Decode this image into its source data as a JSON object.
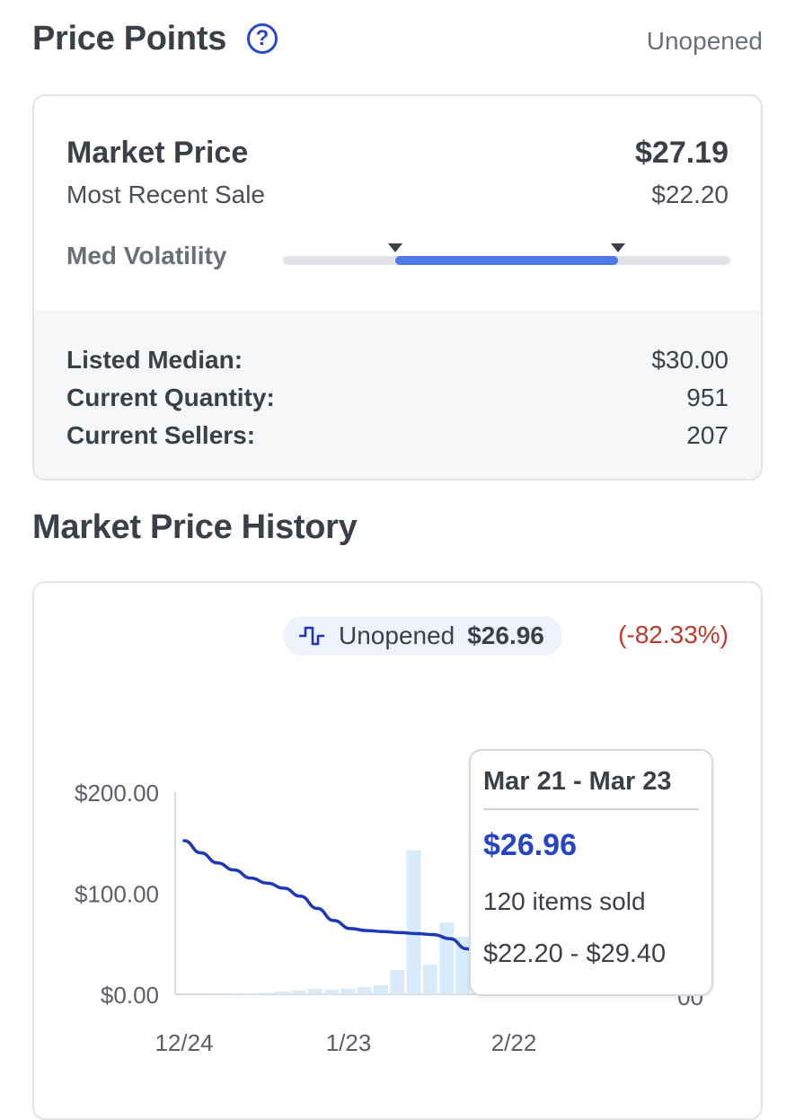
{
  "header": {
    "title": "Price Points",
    "condition": "Unopened"
  },
  "price_card": {
    "market_price_label": "Market Price",
    "market_price_value": "$27.19",
    "recent_sale_label": "Most Recent Sale",
    "recent_sale_value": "$22.20",
    "volatility_label": "Med Volatility",
    "stats": [
      {
        "label": "Listed Median:",
        "value": "$30.00"
      },
      {
        "label": "Current Quantity:",
        "value": "951"
      },
      {
        "label": "Current Sellers:",
        "value": "207"
      }
    ]
  },
  "history": {
    "title": "Market Price History",
    "legend": {
      "name": "Unopened",
      "price": "$26.96",
      "change": "(-82.33%)"
    },
    "tooltip": {
      "range": "Mar 21 - Mar 23",
      "price": "$26.96",
      "sold": "120 items sold",
      "price_range": "$22.20 - $29.40"
    }
  },
  "chart_data": {
    "type": "line",
    "title": "",
    "y_ticks": [
      "$200.00",
      "$100.00",
      "$0.00"
    ],
    "ylim": [
      0,
      200
    ],
    "x_ticks": [
      "12/24",
      "1/23",
      "2/22"
    ],
    "right_axis_partial_ticks": [
      "0",
      "00",
      "00"
    ],
    "series": [
      {
        "values": [
          152,
          140,
          130,
          123,
          115,
          110,
          105,
          97,
          85,
          73,
          65,
          63,
          62,
          61,
          60,
          59,
          55,
          45,
          33,
          31,
          31,
          30,
          29,
          28,
          28,
          28,
          30,
          31,
          31
        ]
      }
    ],
    "volume_bars": [
      0.5,
      1,
      1,
      2,
      3,
      4,
      6,
      5,
      6,
      8,
      10,
      27,
      160,
      33,
      80,
      64,
      82,
      82
    ],
    "colors": {
      "line": "#1e37b8",
      "bars": "#d8ebfb",
      "axis": "#d7dbe0"
    }
  },
  "icons": {
    "legend": "step-line-icon",
    "help": "question-circle-icon"
  }
}
